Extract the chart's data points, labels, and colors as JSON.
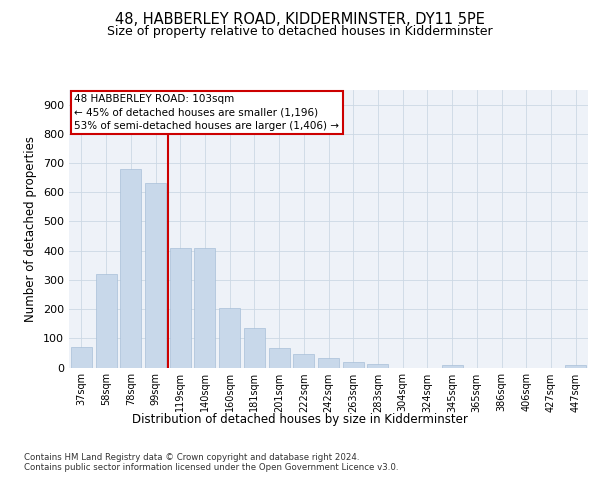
{
  "title": "48, HABBERLEY ROAD, KIDDERMINSTER, DY11 5PE",
  "subtitle": "Size of property relative to detached houses in Kidderminster",
  "xlabel": "Distribution of detached houses by size in Kidderminster",
  "ylabel": "Number of detached properties",
  "categories": [
    "37sqm",
    "58sqm",
    "78sqm",
    "99sqm",
    "119sqm",
    "140sqm",
    "160sqm",
    "181sqm",
    "201sqm",
    "222sqm",
    "242sqm",
    "263sqm",
    "283sqm",
    "304sqm",
    "324sqm",
    "345sqm",
    "365sqm",
    "386sqm",
    "406sqm",
    "427sqm",
    "447sqm"
  ],
  "values": [
    70,
    320,
    680,
    630,
    410,
    408,
    205,
    135,
    68,
    45,
    33,
    20,
    13,
    0,
    0,
    7,
    0,
    0,
    0,
    0,
    8
  ],
  "bar_color": "#c8d8ea",
  "bar_edge_color": "#a8c0d8",
  "highlight_line_color": "#cc0000",
  "annotation_text": "48 HABBERLEY ROAD: 103sqm\n← 45% of detached houses are smaller (1,196)\n53% of semi-detached houses are larger (1,406) →",
  "annotation_box_color": "#ffffff",
  "annotation_box_edge": "#cc0000",
  "ylim": [
    0,
    950
  ],
  "yticks": [
    0,
    100,
    200,
    300,
    400,
    500,
    600,
    700,
    800,
    900
  ],
  "grid_color": "#ccd8e4",
  "background_color": "#eef2f8",
  "footer_text": "Contains HM Land Registry data © Crown copyright and database right 2024.\nContains public sector information licensed under the Open Government Licence v3.0."
}
